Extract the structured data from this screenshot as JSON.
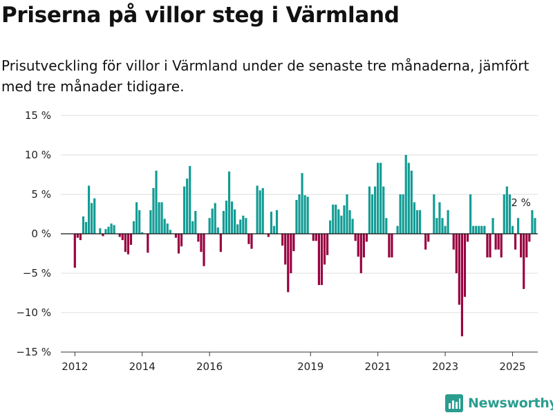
{
  "header": {
    "title": "Priserna på villor steg i Värmland",
    "subtitle": "Prisutveckling för villor i Värmland under de senaste tre månaderna, jämfört med tre månader tidigare."
  },
  "brand": {
    "name": "Newsworthy",
    "logo_icon": "bar-chart-icon"
  },
  "colors": {
    "positive": "#129c95",
    "negative": "#98003f",
    "grid": "#dddddd",
    "axis": "#333333",
    "brand": "#2a9d8f"
  },
  "chart_data": {
    "type": "bar",
    "title": "Priserna på villor steg i Värmland",
    "xlabel": "",
    "ylabel": "",
    "ylim": [
      -15,
      15
    ],
    "y_ticks": [
      15,
      10,
      5,
      0,
      -5,
      -10,
      -15
    ],
    "y_tick_labels": [
      "15 %",
      "10 %",
      "5 %",
      "0 %",
      "−5 %",
      "−10 %",
      "−15 %"
    ],
    "x_ticks": [
      {
        "label": "2012",
        "date": "2012-01"
      },
      {
        "label": "2014",
        "date": "2014-01"
      },
      {
        "label": "2016",
        "date": "2016-01"
      },
      {
        "label": "2019",
        "date": "2019-01"
      },
      {
        "label": "2021",
        "date": "2021-01"
      },
      {
        "label": "2023",
        "date": "2023-01"
      },
      {
        "label": "2025",
        "date": "2025-01"
      }
    ],
    "x_range": [
      "2011-08",
      "2025-10"
    ],
    "grid": true,
    "annotation": {
      "text": "2 %",
      "date": "2025-03"
    },
    "start_month": "2012-01",
    "values": [
      -4.3,
      -0.5,
      -0.8,
      2.2,
      1.5,
      6.1,
      3.9,
      4.5,
      0.0,
      0.7,
      -0.3,
      0.6,
      0.9,
      1.3,
      1.1,
      0.0,
      -0.4,
      -0.8,
      -2.3,
      -2.6,
      -1.4,
      1.6,
      4.0,
      3.0,
      0.2,
      0.0,
      -2.4,
      3.0,
      5.8,
      8.0,
      4.0,
      4.0,
      1.9,
      1.3,
      0.5,
      0.0,
      -0.5,
      -2.5,
      -1.6,
      6.0,
      7.0,
      8.6,
      1.6,
      2.9,
      -1.0,
      -2.3,
      -4.1,
      0.0,
      2.0,
      3.2,
      3.9,
      0.8,
      -2.3,
      2.9,
      4.2,
      7.9,
      4.1,
      3.1,
      1.2,
      1.8,
      2.3,
      2.0,
      -1.3,
      -1.9,
      0.0,
      6.1,
      5.5,
      5.8,
      0.0,
      -0.4,
      2.8,
      1.0,
      3.0,
      0.0,
      -1.5,
      -3.9,
      -7.4,
      -5.0,
      -2.2,
      4.3,
      5.0,
      7.7,
      4.9,
      4.7,
      0.0,
      -0.9,
      -0.9,
      -6.5,
      -6.5,
      -3.9,
      -2.7,
      1.7,
      3.7,
      3.7,
      3.1,
      2.3,
      3.6,
      5.0,
      3.0,
      1.9,
      -0.9,
      -2.9,
      -5.0,
      -3.0,
      -1.0,
      6.0,
      5.0,
      6.0,
      9.0,
      9.0,
      6.0,
      2.0,
      -3.0,
      -3.0,
      0.0,
      1.0,
      5.0,
      5.0,
      10.0,
      9.0,
      8.0,
      4.0,
      3.0,
      3.0,
      0.0,
      -2.0,
      -1.0,
      0.0,
      5.0,
      2.0,
      4.0,
      2.0,
      1.0,
      3.0,
      0.0,
      -2.0,
      -5.0,
      -9.0,
      -13.0,
      -8.0,
      -1.0,
      5.0,
      1.0,
      1.0,
      1.0,
      1.0,
      1.0,
      -3.0,
      -3.0,
      2.0,
      -2.0,
      -2.0,
      -3.0,
      5.0,
      6.0,
      5.0,
      1.0,
      -2.0,
      2.0,
      -3.0,
      -7.0,
      -3.0,
      -1.0,
      3.0,
      2.0
    ]
  }
}
